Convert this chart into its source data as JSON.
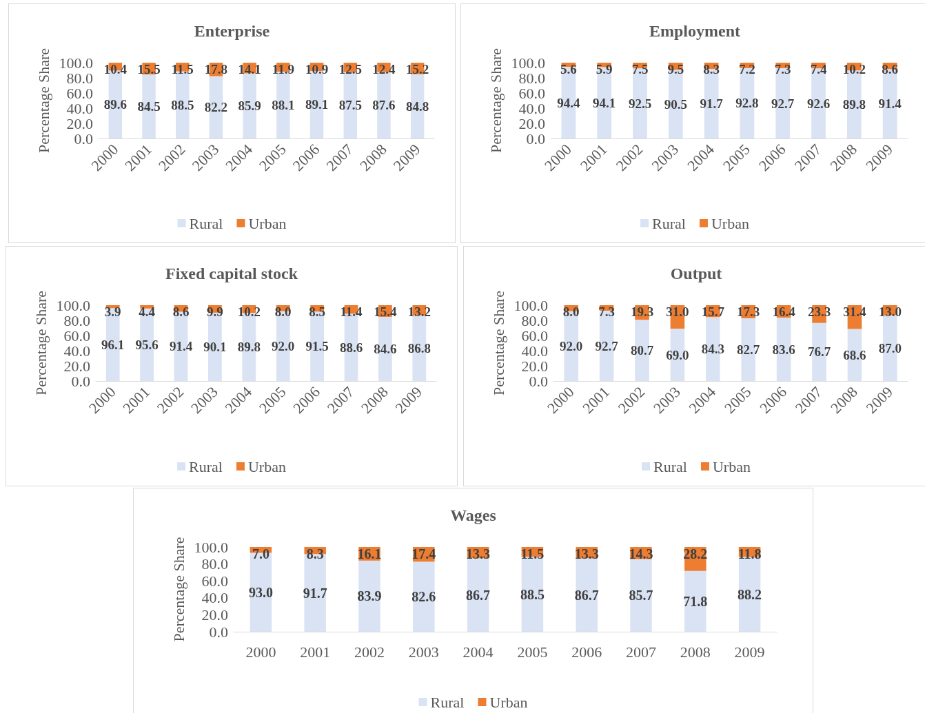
{
  "chart_data": [
    {
      "type": "bar",
      "title": "Enterprise",
      "ylabel": "Percentage Share",
      "stacked": true,
      "legend": "bottom",
      "grid": false,
      "categories": [
        "2000",
        "2001",
        "2002",
        "2003",
        "2004",
        "2005",
        "2006",
        "2007",
        "2008",
        "2009"
      ],
      "ylim": [
        0,
        100
      ],
      "yticks": [
        {
          "value": 0,
          "label": "0.0"
        },
        {
          "value": 20,
          "label": "20.0"
        },
        {
          "value": 40,
          "label": "40.0"
        },
        {
          "value": 60,
          "label": "60.0"
        },
        {
          "value": 80,
          "label": "80.0"
        },
        {
          "value": 100,
          "label": "100.0"
        }
      ],
      "series": [
        {
          "name": "Rural",
          "color": "#dae3f3",
          "values": [
            89.6,
            84.5,
            88.5,
            82.2,
            85.9,
            88.1,
            89.1,
            87.5,
            87.6,
            84.8
          ],
          "value_labels": [
            "89.6",
            "84.5",
            "88.5",
            "82.2",
            "85.9",
            "88.1",
            "89.1",
            "87.5",
            "87.6",
            "84.8"
          ]
        },
        {
          "name": "Urban",
          "color": "#ed7d31",
          "values": [
            10.4,
            15.5,
            11.5,
            17.8,
            14.1,
            11.9,
            10.9,
            12.5,
            12.4,
            15.2
          ],
          "value_labels": [
            "10.4",
            "15.5",
            "11.5",
            "17.8",
            "14.1",
            "11.9",
            "10.9",
            "12.5",
            "12.4",
            "15.2"
          ]
        }
      ]
    },
    {
      "type": "bar",
      "title": "Employment",
      "ylabel": "Percentage Share",
      "stacked": true,
      "legend": "bottom",
      "grid": false,
      "categories": [
        "2000",
        "2001",
        "2002",
        "2003",
        "2004",
        "2005",
        "2006",
        "2007",
        "2008",
        "2009"
      ],
      "ylim": [
        0,
        100
      ],
      "yticks": [
        {
          "value": 0,
          "label": "0.0"
        },
        {
          "value": 20,
          "label": "20.0"
        },
        {
          "value": 40,
          "label": "40.0"
        },
        {
          "value": 60,
          "label": "60.0"
        },
        {
          "value": 80,
          "label": "80.0"
        },
        {
          "value": 100,
          "label": "100.0"
        }
      ],
      "series": [
        {
          "name": "Rural",
          "color": "#dae3f3",
          "values": [
            94.4,
            94.1,
            92.5,
            90.5,
            91.7,
            92.8,
            92.7,
            92.6,
            89.8,
            91.4
          ],
          "value_labels": [
            "94.4",
            "94.1",
            "92.5",
            "90.5",
            "91.7",
            "92.8",
            "92.7",
            "92.6",
            "89.8",
            "91.4"
          ]
        },
        {
          "name": "Urban",
          "color": "#ed7d31",
          "values": [
            5.6,
            5.9,
            7.5,
            9.5,
            8.3,
            7.2,
            7.3,
            7.4,
            10.2,
            8.6
          ],
          "value_labels": [
            "5.6",
            "5.9",
            "7.5",
            "9.5",
            "8.3",
            "7.2",
            "7.3",
            "7.4",
            "10.2",
            "8.6"
          ]
        }
      ]
    },
    {
      "type": "bar",
      "title": "Fixed capital stock",
      "ylabel": "Percentage Share",
      "stacked": true,
      "legend": "bottom",
      "grid": false,
      "categories": [
        "2000",
        "2001",
        "2002",
        "2003",
        "2004",
        "2005",
        "2006",
        "2007",
        "2008",
        "2009"
      ],
      "ylim": [
        0,
        100
      ],
      "yticks": [
        {
          "value": 0,
          "label": "0.0"
        },
        {
          "value": 20,
          "label": "20.0"
        },
        {
          "value": 40,
          "label": "40.0"
        },
        {
          "value": 60,
          "label": "60.0"
        },
        {
          "value": 80,
          "label": "80.0"
        },
        {
          "value": 100,
          "label": "100.0"
        }
      ],
      "series": [
        {
          "name": "Rural",
          "color": "#dae3f3",
          "values": [
            96.1,
            95.6,
            91.4,
            90.1,
            89.8,
            92.0,
            91.5,
            88.6,
            84.6,
            86.8
          ],
          "value_labels": [
            "96.1",
            "95.6",
            "91.4",
            "90.1",
            "89.8",
            "92.0",
            "91.5",
            "88.6",
            "84.6",
            "86.8"
          ]
        },
        {
          "name": "Urban",
          "color": "#ed7d31",
          "values": [
            3.9,
            4.4,
            8.6,
            9.9,
            10.2,
            8.0,
            8.5,
            11.4,
            15.4,
            13.2
          ],
          "value_labels": [
            "3.9",
            "4.4",
            "8.6",
            "9.9",
            "10.2",
            "8.0",
            "8.5",
            "11.4",
            "15.4",
            "13.2"
          ]
        }
      ]
    },
    {
      "type": "bar",
      "title": "Output",
      "ylabel": "Percentage Share",
      "stacked": true,
      "legend": "bottom",
      "grid": false,
      "categories": [
        "2000",
        "2001",
        "2002",
        "2003",
        "2004",
        "2005",
        "2006",
        "2007",
        "2008",
        "2009"
      ],
      "ylim": [
        0,
        100
      ],
      "yticks": [
        {
          "value": 0,
          "label": "0.0"
        },
        {
          "value": 20,
          "label": "20.0"
        },
        {
          "value": 40,
          "label": "40.0"
        },
        {
          "value": 60,
          "label": "60.0"
        },
        {
          "value": 80,
          "label": "80.0"
        },
        {
          "value": 100,
          "label": "100.0"
        }
      ],
      "series": [
        {
          "name": "Rural",
          "color": "#dae3f3",
          "values": [
            92.0,
            92.7,
            80.7,
            69.0,
            84.3,
            82.7,
            83.6,
            76.7,
            68.6,
            87.0
          ],
          "value_labels": [
            "92.0",
            "92.7",
            "80.7",
            "69.0",
            "84.3",
            "82.7",
            "83.6",
            "76.7",
            "68.6",
            "87.0"
          ]
        },
        {
          "name": "Urban",
          "color": "#ed7d31",
          "values": [
            8.0,
            7.3,
            19.3,
            31.0,
            15.7,
            17.3,
            16.4,
            23.3,
            31.4,
            13.0
          ],
          "value_labels": [
            "8.0",
            "7.3",
            "19.3",
            "31.0",
            "15.7",
            "17.3",
            "16.4",
            "23.3",
            "31.4",
            "13.0"
          ]
        }
      ]
    },
    {
      "type": "bar",
      "title": "Wages",
      "ylabel": "Percentage Share",
      "stacked": true,
      "legend": "bottom",
      "grid": false,
      "categories": [
        "2000",
        "2001",
        "2002",
        "2003",
        "2004",
        "2005",
        "2006",
        "2007",
        "2008",
        "2009"
      ],
      "ylim": [
        0,
        100
      ],
      "yticks": [
        {
          "value": 0,
          "label": "0.0"
        },
        {
          "value": 20,
          "label": "20.0"
        },
        {
          "value": 40,
          "label": "40.0"
        },
        {
          "value": 60,
          "label": "60.0"
        },
        {
          "value": 80,
          "label": "80.0"
        },
        {
          "value": 100,
          "label": "100.0"
        }
      ],
      "series": [
        {
          "name": "Rural",
          "color": "#dae3f3",
          "values": [
            93.0,
            91.7,
            83.9,
            82.6,
            86.7,
            88.5,
            86.7,
            85.7,
            71.8,
            88.2
          ],
          "value_labels": [
            "93.0",
            "91.7",
            "83.9",
            "82.6",
            "86.7",
            "88.5",
            "86.7",
            "85.7",
            "71.8",
            "88.2"
          ]
        },
        {
          "name": "Urban",
          "color": "#ed7d31",
          "values": [
            7.0,
            8.3,
            16.1,
            17.4,
            13.3,
            11.5,
            13.3,
            14.3,
            28.2,
            11.8
          ],
          "value_labels": [
            "7.0",
            "8.3",
            "16.1",
            "17.4",
            "13.3",
            "11.5",
            "13.3",
            "14.3",
            "28.2",
            "11.8"
          ]
        }
      ]
    }
  ]
}
